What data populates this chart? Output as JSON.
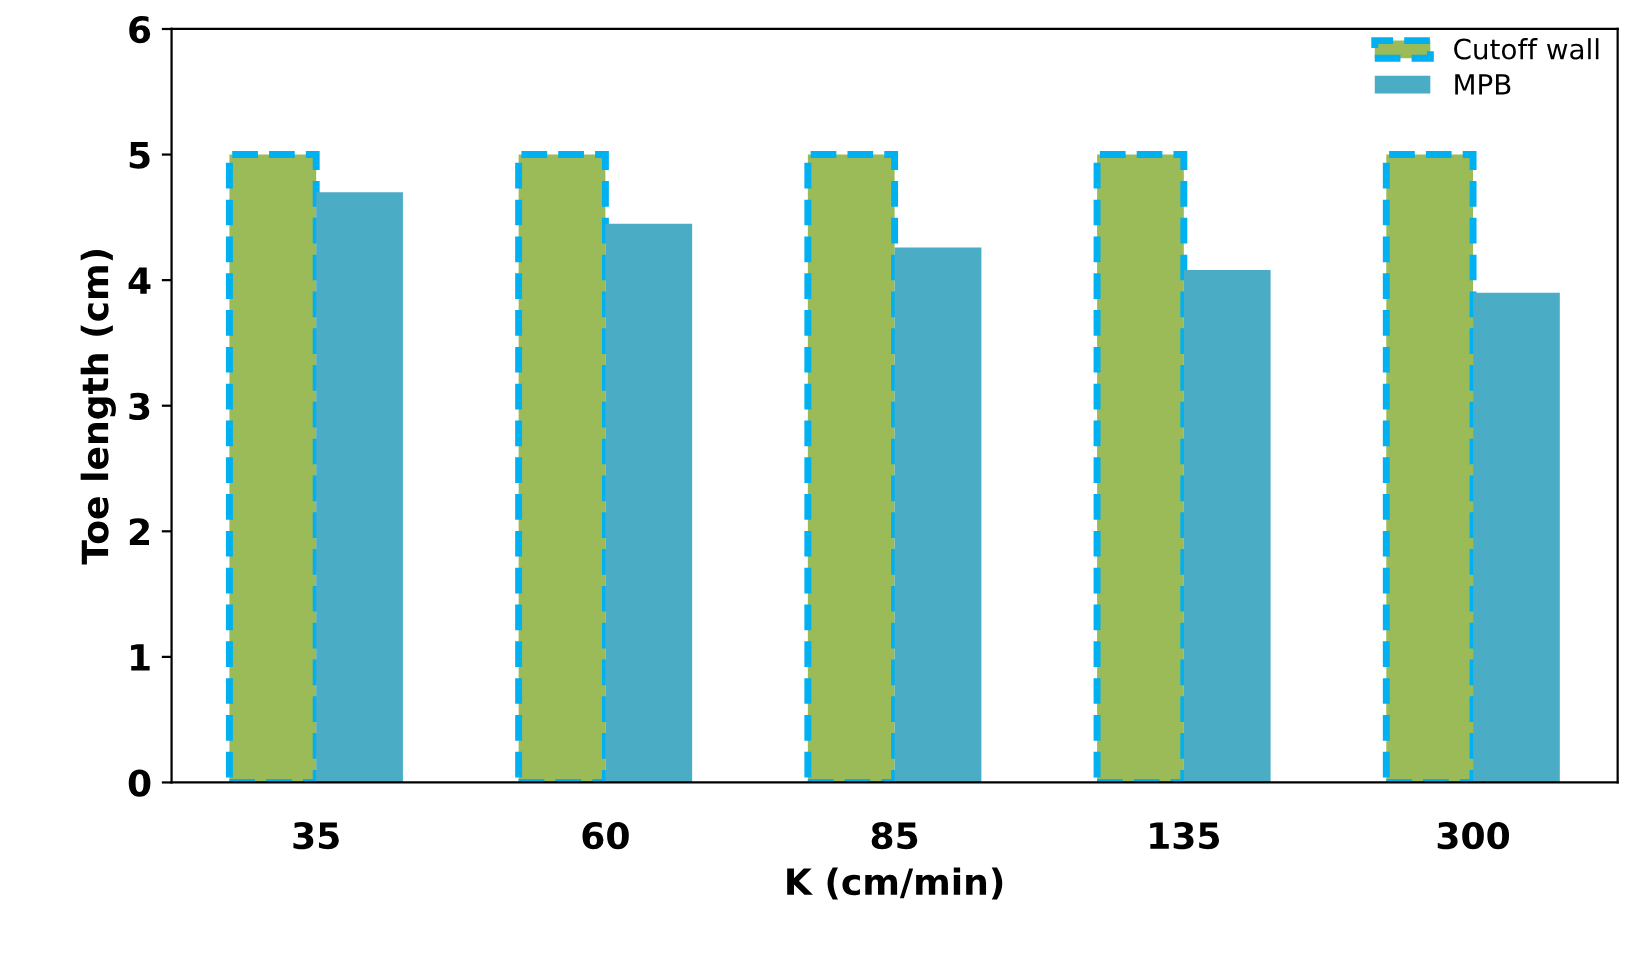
{
  "chart_data": {
    "type": "bar",
    "xlabel": "K (cm/min)",
    "ylabel": "Toe length (cm)",
    "categories": [
      "35",
      "60",
      "85",
      "135",
      "300"
    ],
    "series": [
      {
        "name": "Cutoff wall",
        "color": "#9bbb59",
        "line_style": "dashed",
        "values": [
          5,
          5,
          5,
          5,
          5
        ]
      },
      {
        "name": "MPB",
        "color": "#4bacc6",
        "values": [
          4.7,
          4.45,
          4.26,
          4.08,
          3.9
        ]
      }
    ],
    "ylim": [
      0,
      6
    ],
    "yticks": [
      0,
      1,
      2,
      3,
      4,
      5,
      6
    ],
    "grid": false,
    "legend": "top right"
  }
}
